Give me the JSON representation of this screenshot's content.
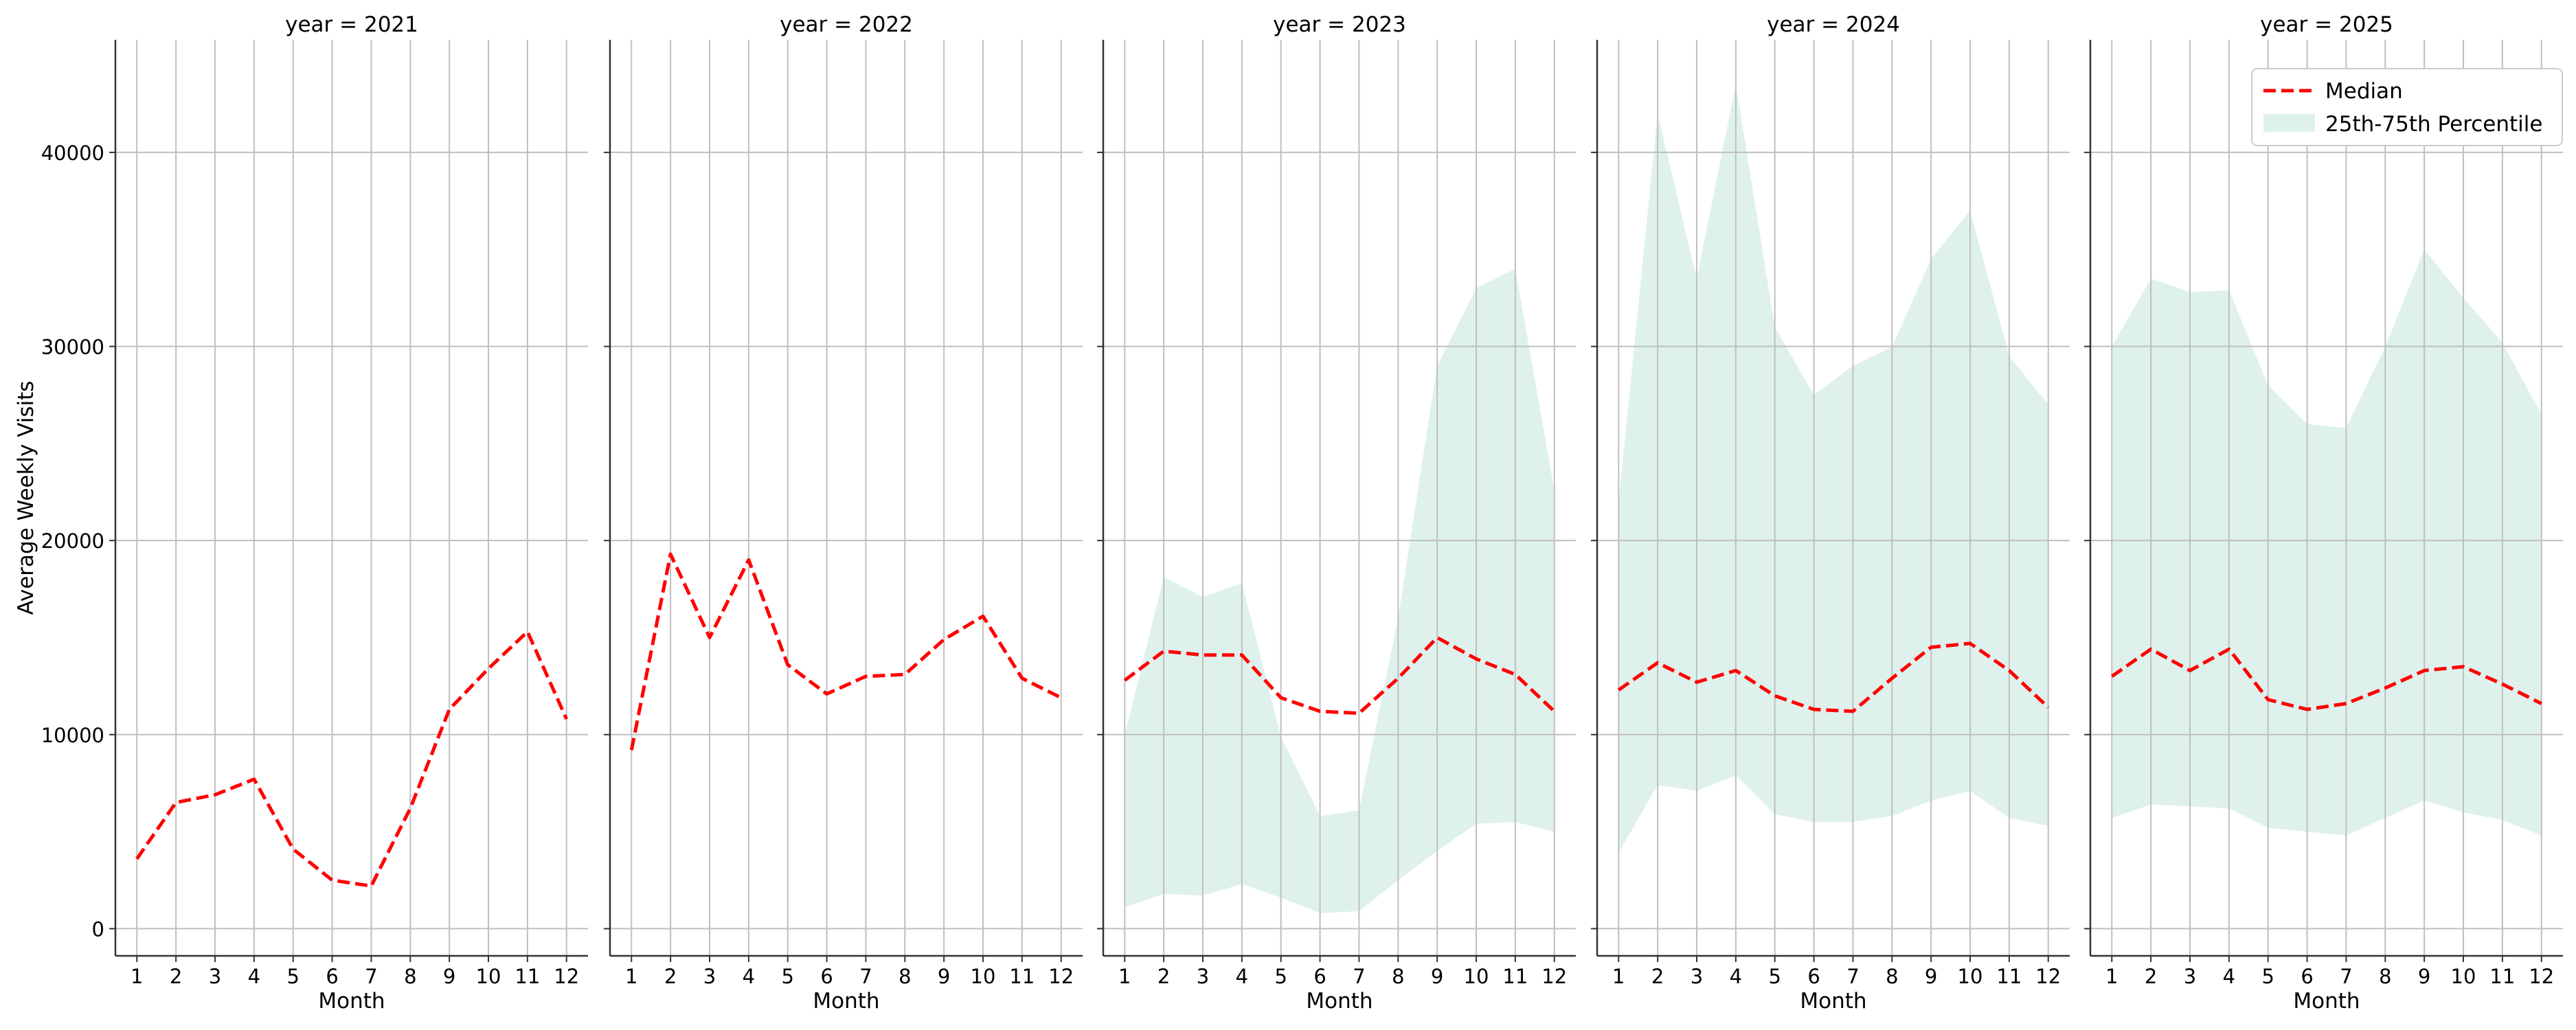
{
  "chart_data": {
    "type": "line",
    "ylabel": "Average Weekly Visits",
    "xlabel": "Month",
    "x": [
      1,
      2,
      3,
      4,
      5,
      6,
      7,
      8,
      9,
      10,
      11,
      12
    ],
    "xticks": [
      "1",
      "2",
      "3",
      "4",
      "5",
      "6",
      "7",
      "8",
      "9",
      "10",
      "11",
      "12"
    ],
    "yticks": [
      0,
      10000,
      20000,
      30000,
      40000
    ],
    "ylim": [
      -1400,
      45800
    ],
    "xlim": [
      0.45,
      12.55
    ],
    "grid": true,
    "legend": {
      "position": "top-right",
      "median_label": "Median",
      "band_label": "25th-75th Percentile"
    },
    "colors": {
      "median": "#ff0000",
      "band": "#dff1ec",
      "grid": "#bfbfbf",
      "axis": "#333333"
    },
    "panels": [
      {
        "title": "year = 2021",
        "median": [
          3600,
          6500,
          6900,
          7700,
          4100,
          2500,
          2200,
          6200,
          11300,
          13400,
          15300,
          10800
        ],
        "p25": null,
        "p75": null
      },
      {
        "title": "year = 2022",
        "median": [
          9200,
          19300,
          15000,
          19000,
          13600,
          12100,
          13000,
          13100,
          14900,
          16100,
          12900,
          11900
        ],
        "p25": null,
        "p75": null
      },
      {
        "title": "year = 2023",
        "median": [
          12800,
          14300,
          14100,
          14100,
          11900,
          11200,
          11100,
          12900,
          15000,
          13900,
          13100,
          11200
        ],
        "p25": [
          1100,
          1800,
          1700,
          2300,
          1600,
          800,
          900,
          2500,
          4000,
          5400,
          5500,
          5000
        ],
        "p75": [
          10000,
          18100,
          17100,
          17800,
          9900,
          5800,
          6100,
          16000,
          29000,
          33000,
          34000,
          22600
        ]
      },
      {
        "title": "year = 2024",
        "median": [
          12300,
          13700,
          12700,
          13300,
          12000,
          11300,
          11200,
          12900,
          14500,
          14700,
          13300,
          11400
        ],
        "p25": [
          3900,
          7400,
          7100,
          7900,
          5900,
          5500,
          5500,
          5800,
          6600,
          7100,
          5700,
          5300
        ],
        "p75": [
          22000,
          42000,
          33500,
          43500,
          31000,
          27500,
          29000,
          30000,
          34500,
          37000,
          29500,
          27000
        ]
      },
      {
        "title": "year = 2025",
        "median": [
          13000,
          14400,
          13300,
          14400,
          11800,
          11300,
          11600,
          12400,
          13300,
          13500,
          12600,
          11600
        ],
        "p25": [
          5700,
          6400,
          6300,
          6200,
          5200,
          5000,
          4800,
          5700,
          6600,
          6000,
          5600,
          4800
        ],
        "p75": [
          30000,
          33500,
          32800,
          32900,
          28000,
          26000,
          25800,
          30000,
          35000,
          32500,
          30200,
          26500
        ]
      }
    ]
  }
}
